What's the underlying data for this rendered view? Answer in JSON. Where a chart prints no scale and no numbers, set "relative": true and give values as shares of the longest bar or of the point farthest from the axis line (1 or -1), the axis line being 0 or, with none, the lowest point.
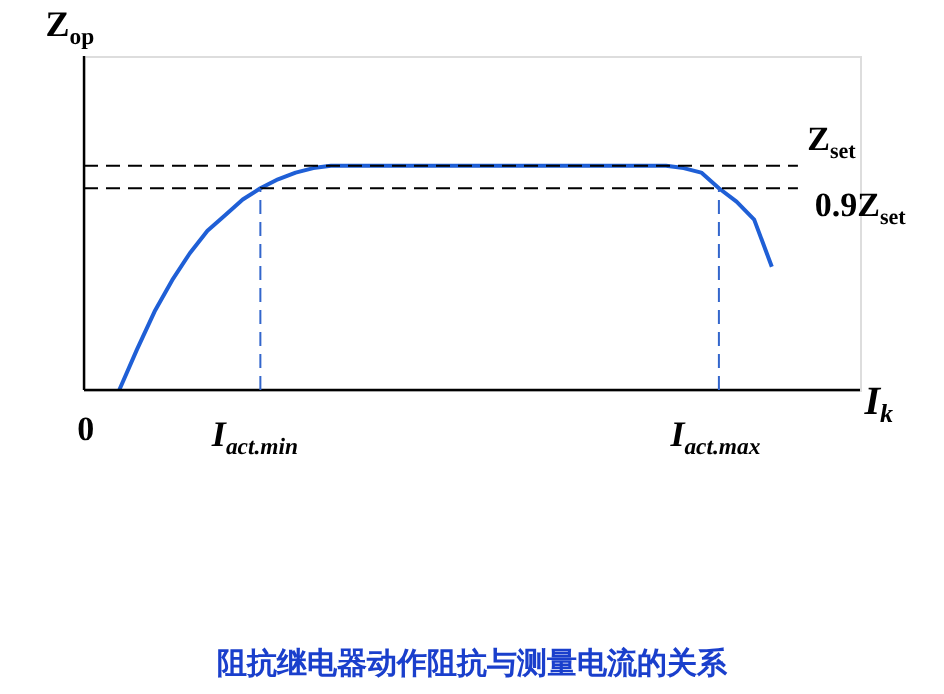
{
  "chart_data": {
    "type": "line",
    "relative": true,
    "title": "阻抗继电器动作阻抗与测量电流的关系",
    "xlabel": "I$_{k}$",
    "ylabel": "Z$_{op}$",
    "categories": [
      "0",
      null,
      null,
      null,
      null,
      null,
      null,
      null,
      null,
      null,
      "I$_{act.min}$",
      null,
      null,
      null,
      null,
      null,
      null,
      null,
      null,
      null,
      null,
      null,
      null,
      null,
      null,
      null,
      null,
      null,
      null,
      null,
      null,
      null,
      null,
      null,
      null,
      null,
      "I$_{act.max}$",
      null,
      null,
      null,
      null,
      null,
      null,
      null,
      null
    ],
    "series": [
      {
        "color": "#1f5fd6",
        "values": [
          null,
          null,
          0,
          0.18,
          0.35,
          0.49,
          0.61,
          0.71,
          0.78,
          0.85,
          0.9,
          0.94,
          0.97,
          0.99,
          1,
          1,
          1,
          1,
          1,
          1,
          1,
          1,
          1,
          1,
          1,
          1,
          1,
          1,
          1,
          1,
          1,
          1,
          1,
          1,
          0.99,
          0.97,
          0.9,
          0.84,
          0.76,
          0.55,
          null,
          null,
          null,
          null,
          null
        ]
      }
    ],
    "ref_lines": [
      {
        "axis": "y",
        "value": 1,
        "label": "Z$_{set}$",
        "color": "#000000",
        "line_style": "dashed"
      },
      {
        "axis": "y",
        "value": 0.9,
        "label": "0.9Z$_{set}$",
        "color": "#000000",
        "line_style": "dashed"
      },
      {
        "axis": "x",
        "value": "I$_{act.min}$",
        "color": "#3366cc",
        "line_style": "dashed"
      },
      {
        "axis": "x",
        "value": "I$_{act.max}$",
        "color": "#3366cc",
        "line_style": "dashed"
      }
    ]
  }
}
